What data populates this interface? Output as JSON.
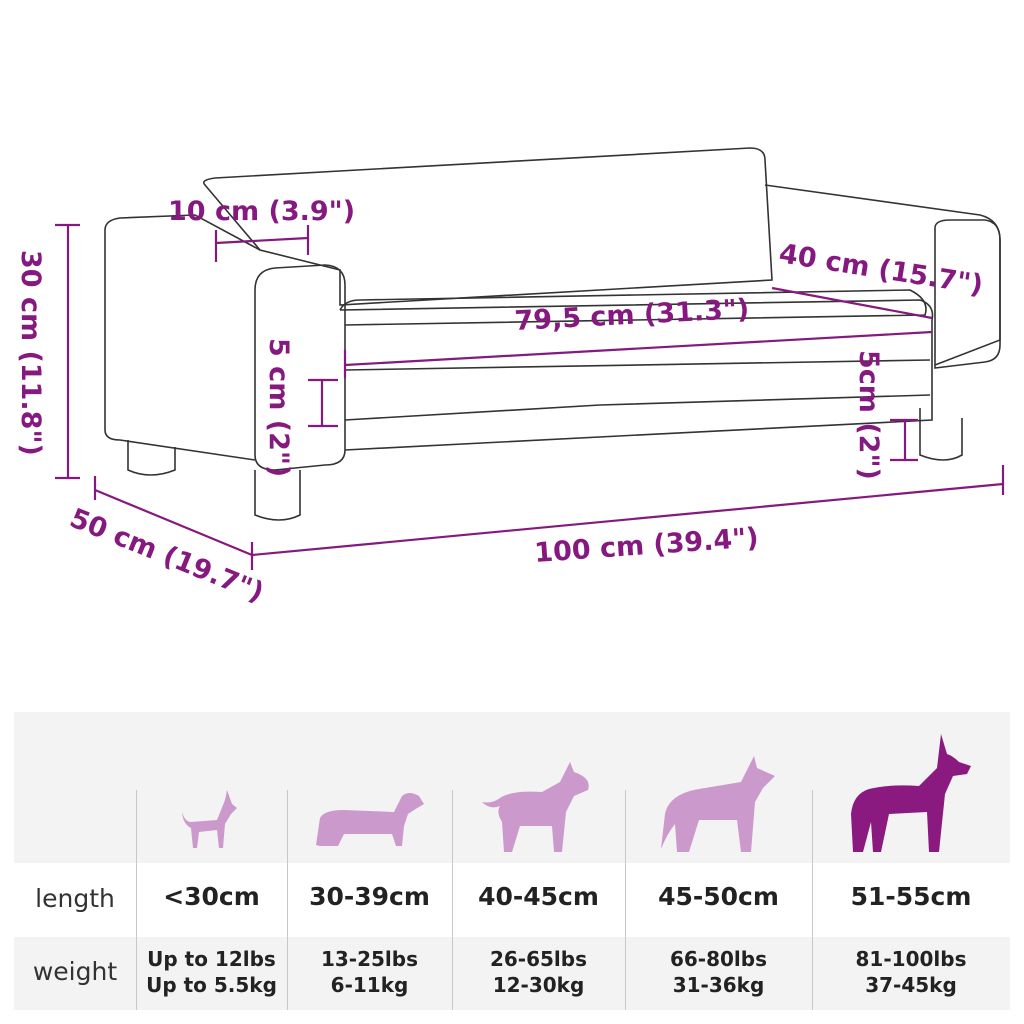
{
  "dimensions": {
    "back_thickness": "10 cm (3.9\")",
    "seat_depth_inner": "40 cm (15.7\")",
    "seat_width": "79,5 cm (31.3\")",
    "cushion_height": "5 cm (2\")",
    "leg_height": "5cm (2\")",
    "total_height": "30 cm (11.8\")",
    "total_depth": "50 cm (19.7\")",
    "total_width": "100 cm (39.4\")"
  },
  "colors": {
    "accent": "#86197f",
    "dog_light": "#cc99cc",
    "dog_dark": "#8b1a80"
  },
  "size_table": {
    "row_labels": {
      "length": "length",
      "weight": "weight"
    },
    "columns": [
      {
        "icon": "chihuahua-icon",
        "length": "<30cm",
        "weight_lbs": "Up to 12lbs",
        "weight_kg": "Up to 5.5kg",
        "highlighted": false
      },
      {
        "icon": "dachshund-icon",
        "length": "30-39cm",
        "weight_lbs": "13-25lbs",
        "weight_kg": "6-11kg",
        "highlighted": false
      },
      {
        "icon": "bull-terrier-icon",
        "length": "40-45cm",
        "weight_lbs": "26-65lbs",
        "weight_kg": "12-30kg",
        "highlighted": false
      },
      {
        "icon": "shepherd-icon",
        "length": "45-50cm",
        "weight_lbs": "66-80lbs",
        "weight_kg": "31-36kg",
        "highlighted": false
      },
      {
        "icon": "great-dane-icon",
        "length": "51-55cm",
        "weight_lbs": "81-100lbs",
        "weight_kg": "37-45kg",
        "highlighted": true
      }
    ]
  }
}
